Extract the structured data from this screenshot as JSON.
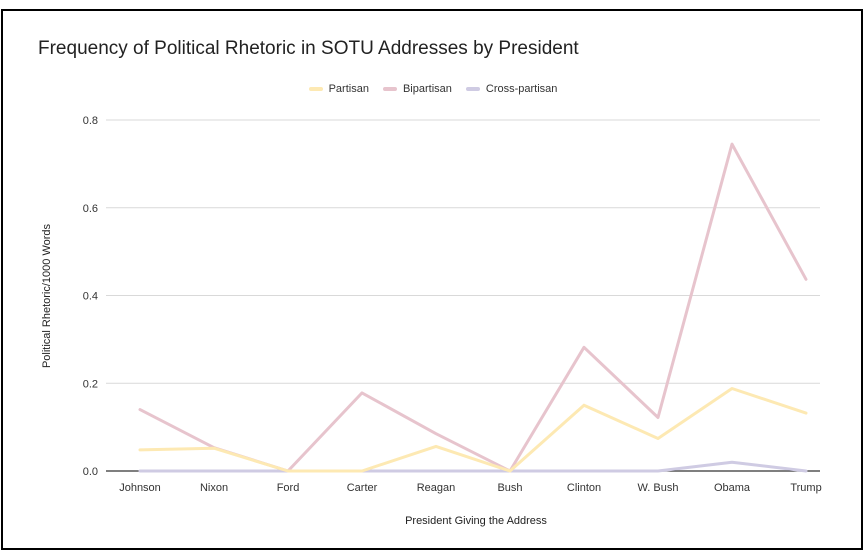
{
  "chart_data": {
    "type": "line",
    "title": "Frequency of Political Rhetoric in SOTU Addresses by President",
    "xlabel": "President Giving the Address",
    "ylabel": "Political Rhetoric/1000 Words",
    "categories": [
      "Johnson",
      "Nixon",
      "Ford",
      "Carter",
      "Reagan",
      "Bush",
      "Clinton",
      "W. Bush",
      "Obama",
      "Trump"
    ],
    "ylim": [
      0,
      0.8
    ],
    "yticks": [
      0,
      0.2,
      0.4,
      0.6,
      0.8
    ],
    "ytick_labels": [
      "0.0",
      "0.2",
      "0.4",
      "0.6",
      "0.8"
    ],
    "grid": true,
    "legend_position": "top-center",
    "series": [
      {
        "name": "Partisan",
        "color": "#fde9b3",
        "values": [
          0.048,
          0.052,
          0.0,
          0.0,
          0.056,
          0.0,
          0.15,
          0.074,
          0.188,
          0.132
        ]
      },
      {
        "name": "Bipartisan",
        "color": "#e7c4cd",
        "values": [
          0.14,
          0.053,
          0.0,
          0.178,
          0.085,
          0.0,
          0.282,
          0.122,
          0.745,
          0.437
        ]
      },
      {
        "name": "Cross-partisan",
        "color": "#cfcbe3",
        "values": [
          0.0,
          0.0,
          0.0,
          0.0,
          0.0,
          0.0,
          0.0,
          0.0,
          0.02,
          0.0
        ]
      }
    ]
  }
}
